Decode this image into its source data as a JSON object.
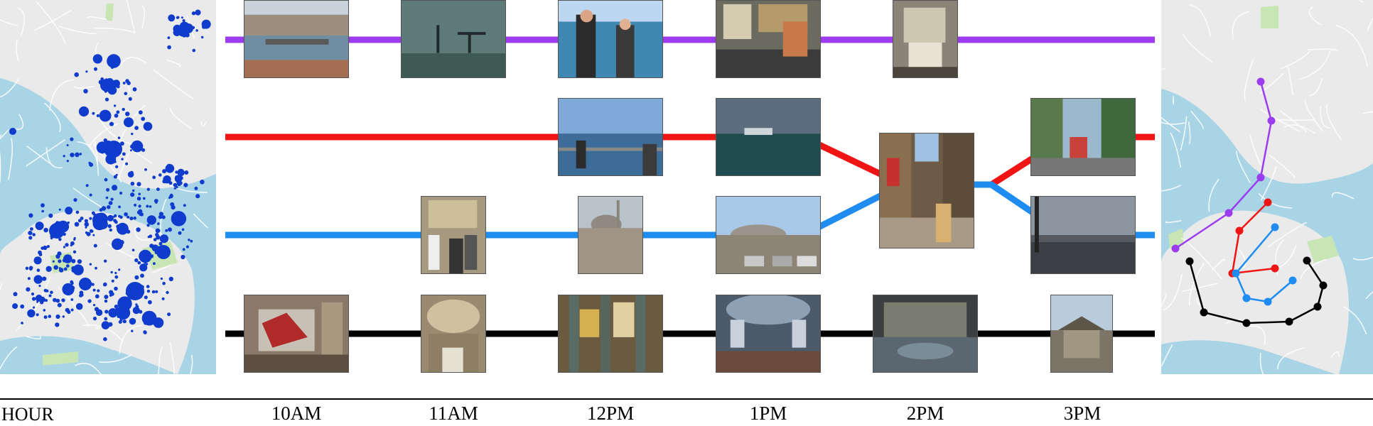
{
  "axis": {
    "header": "HOUR",
    "hours": [
      "10AM",
      "11AM",
      "12PM",
      "1PM",
      "2PM",
      "3PM"
    ]
  },
  "colors": {
    "track_purple": "#9b3cf0",
    "track_red": "#f01414",
    "track_blue": "#1e8cf0",
    "track_black": "#000000",
    "density_dot": "#0f3ccc",
    "water": "#a8d4e6",
    "land": "#eaeaea",
    "park": "#c8e6b4"
  },
  "left_map": {
    "name": "photo-density-map",
    "dot_icon": "map-dot"
  },
  "right_map": {
    "name": "trajectory-map",
    "route_icon": "route-path"
  }
}
